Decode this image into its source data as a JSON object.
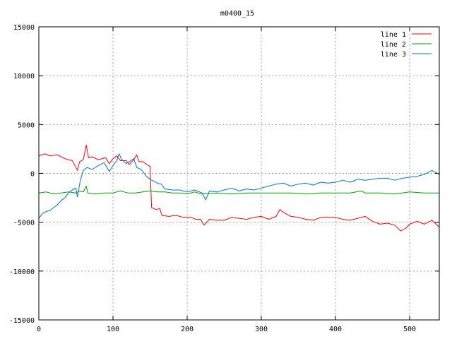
{
  "chart_data": {
    "type": "line",
    "title": "m0400_15",
    "xlabel": "",
    "ylabel": "",
    "xlim": [
      0,
      540
    ],
    "ylim": [
      -15000,
      15000
    ],
    "xticks": [
      0,
      100,
      200,
      300,
      400,
      500
    ],
    "yticks": [
      -15000,
      -10000,
      -5000,
      0,
      5000,
      10000,
      15000
    ],
    "grid": true,
    "legend_position": "top-right",
    "series": [
      {
        "name": "line 1",
        "color": "#ff0000",
        "points": [
          [
            0,
            1800
          ],
          [
            8,
            2000
          ],
          [
            15,
            1800
          ],
          [
            25,
            1900
          ],
          [
            35,
            1500
          ],
          [
            45,
            1300
          ],
          [
            50,
            600
          ],
          [
            52,
            300
          ],
          [
            55,
            1200
          ],
          [
            60,
            1400
          ],
          [
            64,
            2900
          ],
          [
            67,
            1600
          ],
          [
            72,
            1700
          ],
          [
            80,
            1400
          ],
          [
            90,
            1600
          ],
          [
            95,
            1000
          ],
          [
            100,
            1500
          ],
          [
            105,
            1800
          ],
          [
            110,
            1300
          ],
          [
            118,
            1300
          ],
          [
            122,
            900
          ],
          [
            128,
            1400
          ],
          [
            132,
            1900
          ],
          [
            135,
            1200
          ],
          [
            140,
            1200
          ],
          [
            146,
            900
          ],
          [
            150,
            700
          ],
          [
            152,
            -3500
          ],
          [
            158,
            -3700
          ],
          [
            163,
            -3600
          ],
          [
            166,
            -4300
          ],
          [
            175,
            -4400
          ],
          [
            185,
            -4300
          ],
          [
            195,
            -4500
          ],
          [
            205,
            -4500
          ],
          [
            212,
            -4700
          ],
          [
            218,
            -4700
          ],
          [
            223,
            -5300
          ],
          [
            230,
            -4700
          ],
          [
            240,
            -4800
          ],
          [
            250,
            -4800
          ],
          [
            260,
            -4500
          ],
          [
            270,
            -4600
          ],
          [
            280,
            -4700
          ],
          [
            290,
            -4500
          ],
          [
            300,
            -4400
          ],
          [
            310,
            -4700
          ],
          [
            320,
            -4400
          ],
          [
            325,
            -3700
          ],
          [
            330,
            -4000
          ],
          [
            340,
            -4400
          ],
          [
            350,
            -4500
          ],
          [
            360,
            -4700
          ],
          [
            370,
            -4800
          ],
          [
            380,
            -4500
          ],
          [
            390,
            -4500
          ],
          [
            400,
            -4500
          ],
          [
            410,
            -4700
          ],
          [
            420,
            -4800
          ],
          [
            430,
            -4600
          ],
          [
            440,
            -4400
          ],
          [
            450,
            -4900
          ],
          [
            460,
            -5200
          ],
          [
            470,
            -5100
          ],
          [
            480,
            -5300
          ],
          [
            488,
            -5900
          ],
          [
            495,
            -5600
          ],
          [
            500,
            -5200
          ],
          [
            510,
            -4900
          ],
          [
            520,
            -5200
          ],
          [
            530,
            -4800
          ],
          [
            540,
            -5500
          ]
        ]
      },
      {
        "name": "line 2",
        "color": "#00a000",
        "points": [
          [
            0,
            -2000
          ],
          [
            10,
            -1900
          ],
          [
            20,
            -2100
          ],
          [
            30,
            -2000
          ],
          [
            40,
            -1900
          ],
          [
            50,
            -2000
          ],
          [
            55,
            -1800
          ],
          [
            60,
            -1900
          ],
          [
            64,
            -1300
          ],
          [
            66,
            -2000
          ],
          [
            75,
            -2100
          ],
          [
            90,
            -2000
          ],
          [
            100,
            -2000
          ],
          [
            110,
            -1800
          ],
          [
            120,
            -2000
          ],
          [
            130,
            -2000
          ],
          [
            140,
            -1900
          ],
          [
            150,
            -1800
          ],
          [
            160,
            -1900
          ],
          [
            170,
            -1900
          ],
          [
            180,
            -2000
          ],
          [
            190,
            -2000
          ],
          [
            200,
            -2100
          ],
          [
            210,
            -1900
          ],
          [
            220,
            -2100
          ],
          [
            240,
            -2000
          ],
          [
            260,
            -2100
          ],
          [
            280,
            -2000
          ],
          [
            300,
            -2000
          ],
          [
            320,
            -2000
          ],
          [
            340,
            -2000
          ],
          [
            360,
            -2100
          ],
          [
            380,
            -2000
          ],
          [
            400,
            -2000
          ],
          [
            420,
            -2000
          ],
          [
            435,
            -1800
          ],
          [
            440,
            -2000
          ],
          [
            460,
            -2000
          ],
          [
            480,
            -2100
          ],
          [
            500,
            -1900
          ],
          [
            520,
            -2000
          ],
          [
            540,
            -2000
          ]
        ]
      },
      {
        "name": "line 3",
        "color": "#0070d0",
        "points": [
          [
            0,
            -4600
          ],
          [
            5,
            -4100
          ],
          [
            10,
            -3900
          ],
          [
            15,
            -3800
          ],
          [
            20,
            -3500
          ],
          [
            25,
            -3200
          ],
          [
            30,
            -2800
          ],
          [
            35,
            -2500
          ],
          [
            40,
            -2000
          ],
          [
            45,
            -1700
          ],
          [
            50,
            -1500
          ],
          [
            52,
            -2400
          ],
          [
            56,
            -700
          ],
          [
            60,
            300
          ],
          [
            65,
            600
          ],
          [
            72,
            400
          ],
          [
            80,
            800
          ],
          [
            88,
            1100
          ],
          [
            95,
            200
          ],
          [
            100,
            800
          ],
          [
            105,
            1300
          ],
          [
            108,
            2000
          ],
          [
            112,
            1400
          ],
          [
            118,
            1000
          ],
          [
            122,
            1200
          ],
          [
            128,
            1500
          ],
          [
            132,
            600
          ],
          [
            138,
            400
          ],
          [
            145,
            -300
          ],
          [
            150,
            -600
          ],
          [
            155,
            -800
          ],
          [
            160,
            -1000
          ],
          [
            165,
            -1100
          ],
          [
            170,
            -1600
          ],
          [
            180,
            -1700
          ],
          [
            190,
            -1700
          ],
          [
            200,
            -1900
          ],
          [
            210,
            -1700
          ],
          [
            220,
            -2000
          ],
          [
            225,
            -2700
          ],
          [
            230,
            -1800
          ],
          [
            240,
            -1900
          ],
          [
            250,
            -1700
          ],
          [
            260,
            -1500
          ],
          [
            270,
            -1800
          ],
          [
            280,
            -1600
          ],
          [
            290,
            -1700
          ],
          [
            300,
            -1500
          ],
          [
            310,
            -1300
          ],
          [
            320,
            -1100
          ],
          [
            330,
            -1000
          ],
          [
            340,
            -1300
          ],
          [
            350,
            -1100
          ],
          [
            360,
            -1000
          ],
          [
            370,
            -1200
          ],
          [
            380,
            -900
          ],
          [
            390,
            -1000
          ],
          [
            400,
            -900
          ],
          [
            410,
            -700
          ],
          [
            420,
            -900
          ],
          [
            430,
            -600
          ],
          [
            440,
            -700
          ],
          [
            450,
            -600
          ],
          [
            460,
            -500
          ],
          [
            470,
            -500
          ],
          [
            480,
            -700
          ],
          [
            490,
            -500
          ],
          [
            500,
            -400
          ],
          [
            510,
            -300
          ],
          [
            520,
            -100
          ],
          [
            530,
            300
          ],
          [
            535,
            100
          ],
          [
            540,
            -100
          ]
        ]
      }
    ]
  }
}
